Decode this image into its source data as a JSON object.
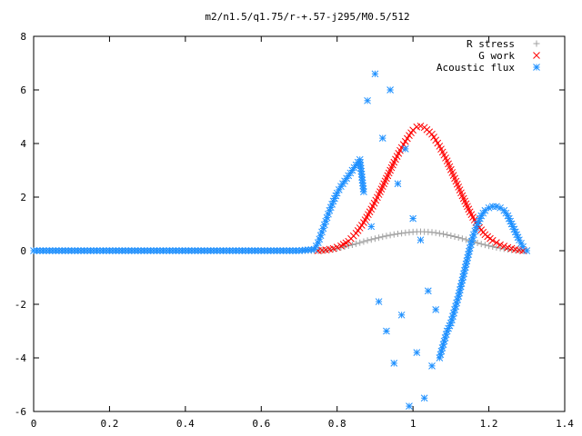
{
  "chart_data": {
    "type": "scatter",
    "title": "m2/n1.5/q1.75/r-+.57-j295/M0.5/512",
    "xlabel": "",
    "ylabel": "",
    "xlim": [
      0,
      1.4
    ],
    "ylim": [
      -6,
      8
    ],
    "x_ticks": [
      0,
      0.2,
      0.4,
      0.6,
      0.8,
      1,
      1.2,
      1.4
    ],
    "x_tick_labels": [
      "0",
      "0.2",
      "0.4",
      "0.6",
      "0.8",
      "1",
      "1.2",
      "1.4"
    ],
    "y_ticks": [
      -6,
      -4,
      -2,
      0,
      2,
      4,
      6,
      8
    ],
    "y_tick_labels": [
      "-6",
      "-4",
      "-2",
      "0",
      "2",
      "4",
      "6",
      "8"
    ],
    "grid": false,
    "legend_position": "top-right",
    "series": [
      {
        "name": "R stress",
        "marker": "plus",
        "color": "#a0a0a0",
        "points": [
          [
            0.0,
            0.0
          ],
          [
            0.05,
            0.0
          ],
          [
            0.1,
            0.0
          ],
          [
            0.15,
            0.0
          ],
          [
            0.2,
            0.0
          ],
          [
            0.25,
            0.0
          ],
          [
            0.3,
            0.0
          ],
          [
            0.35,
            0.0
          ],
          [
            0.4,
            0.0
          ],
          [
            0.45,
            0.0
          ],
          [
            0.5,
            0.0
          ],
          [
            0.55,
            0.0
          ],
          [
            0.6,
            0.0
          ],
          [
            0.65,
            0.0
          ],
          [
            0.7,
            0.0
          ],
          [
            0.74,
            0.0
          ],
          [
            0.76,
            0.0
          ],
          [
            0.78,
            0.03
          ],
          [
            0.8,
            0.08
          ],
          [
            0.82,
            0.15
          ],
          [
            0.84,
            0.22
          ],
          [
            0.86,
            0.3
          ],
          [
            0.88,
            0.38
          ],
          [
            0.9,
            0.45
          ],
          [
            0.92,
            0.52
          ],
          [
            0.94,
            0.58
          ],
          [
            0.96,
            0.63
          ],
          [
            0.98,
            0.67
          ],
          [
            1.0,
            0.7
          ],
          [
            1.02,
            0.71
          ],
          [
            1.04,
            0.7
          ],
          [
            1.06,
            0.67
          ],
          [
            1.08,
            0.62
          ],
          [
            1.1,
            0.56
          ],
          [
            1.12,
            0.49
          ],
          [
            1.14,
            0.41
          ],
          [
            1.16,
            0.33
          ],
          [
            1.18,
            0.25
          ],
          [
            1.2,
            0.18
          ],
          [
            1.22,
            0.12
          ],
          [
            1.24,
            0.07
          ],
          [
            1.26,
            0.03
          ],
          [
            1.28,
            0.01
          ],
          [
            1.3,
            0.0
          ]
        ]
      },
      {
        "name": "G work",
        "marker": "cross",
        "color": "#ff0000",
        "points": [
          [
            0.75,
            0.0
          ],
          [
            0.77,
            0.03
          ],
          [
            0.79,
            0.08
          ],
          [
            0.81,
            0.18
          ],
          [
            0.83,
            0.35
          ],
          [
            0.85,
            0.65
          ],
          [
            0.87,
            1.05
          ],
          [
            0.89,
            1.55
          ],
          [
            0.91,
            2.1
          ],
          [
            0.93,
            2.7
          ],
          [
            0.95,
            3.3
          ],
          [
            0.97,
            3.85
          ],
          [
            0.99,
            4.3
          ],
          [
            1.0,
            4.5
          ],
          [
            1.01,
            4.62
          ],
          [
            1.02,
            4.65
          ],
          [
            1.03,
            4.6
          ],
          [
            1.05,
            4.35
          ],
          [
            1.07,
            3.9
          ],
          [
            1.09,
            3.35
          ],
          [
            1.11,
            2.7
          ],
          [
            1.13,
            2.05
          ],
          [
            1.15,
            1.45
          ],
          [
            1.17,
            0.95
          ],
          [
            1.19,
            0.6
          ],
          [
            1.21,
            0.38
          ],
          [
            1.23,
            0.22
          ],
          [
            1.25,
            0.12
          ],
          [
            1.27,
            0.05
          ],
          [
            1.29,
            0.0
          ]
        ]
      },
      {
        "name": "Acoustic flux",
        "marker": "star",
        "color": "#1e90ff",
        "points": [
          [
            0.0,
            0.0
          ],
          [
            0.05,
            0.0
          ],
          [
            0.1,
            0.0
          ],
          [
            0.15,
            0.0
          ],
          [
            0.2,
            0.0
          ],
          [
            0.25,
            0.0
          ],
          [
            0.3,
            0.0
          ],
          [
            0.35,
            0.0
          ],
          [
            0.4,
            0.0
          ],
          [
            0.45,
            0.0
          ],
          [
            0.5,
            0.0
          ],
          [
            0.55,
            0.0
          ],
          [
            0.6,
            0.0
          ],
          [
            0.65,
            0.0
          ],
          [
            0.7,
            0.0
          ],
          [
            0.74,
            0.05
          ],
          [
            0.75,
            0.3
          ],
          [
            0.76,
            0.7
          ],
          [
            0.77,
            1.1
          ],
          [
            0.78,
            1.5
          ],
          [
            0.79,
            1.85
          ],
          [
            0.8,
            2.15
          ],
          [
            0.81,
            2.4
          ],
          [
            0.82,
            2.6
          ],
          [
            0.83,
            2.8
          ],
          [
            0.84,
            3.0
          ],
          [
            0.85,
            3.2
          ],
          [
            0.86,
            3.4
          ],
          [
            0.87,
            2.2
          ],
          [
            0.88,
            5.6
          ],
          [
            0.89,
            0.9
          ],
          [
            0.9,
            6.6
          ],
          [
            0.91,
            -1.9
          ],
          [
            0.92,
            4.2
          ],
          [
            0.93,
            -3.0
          ],
          [
            0.94,
            6.0
          ],
          [
            0.95,
            -4.2
          ],
          [
            0.96,
            2.5
          ],
          [
            0.97,
            -2.4
          ],
          [
            0.98,
            3.8
          ],
          [
            0.99,
            -5.8
          ],
          [
            1.0,
            1.2
          ],
          [
            1.01,
            -3.8
          ],
          [
            1.02,
            0.4
          ],
          [
            1.03,
            -5.5
          ],
          [
            1.04,
            -1.5
          ],
          [
            1.05,
            -4.3
          ],
          [
            1.06,
            -2.2
          ],
          [
            1.07,
            -4.0
          ],
          [
            1.08,
            -3.5
          ],
          [
            1.09,
            -3.0
          ],
          [
            1.1,
            -2.7
          ],
          [
            1.11,
            -2.2
          ],
          [
            1.12,
            -1.7
          ],
          [
            1.13,
            -1.1
          ],
          [
            1.14,
            -0.5
          ],
          [
            1.15,
            0.1
          ],
          [
            1.16,
            0.6
          ],
          [
            1.17,
            1.0
          ],
          [
            1.18,
            1.3
          ],
          [
            1.19,
            1.5
          ],
          [
            1.2,
            1.6
          ],
          [
            1.21,
            1.65
          ],
          [
            1.22,
            1.65
          ],
          [
            1.23,
            1.6
          ],
          [
            1.24,
            1.5
          ],
          [
            1.25,
            1.3
          ],
          [
            1.26,
            1.0
          ],
          [
            1.27,
            0.7
          ],
          [
            1.28,
            0.4
          ],
          [
            1.29,
            0.15
          ],
          [
            1.3,
            0.0
          ]
        ]
      }
    ]
  }
}
